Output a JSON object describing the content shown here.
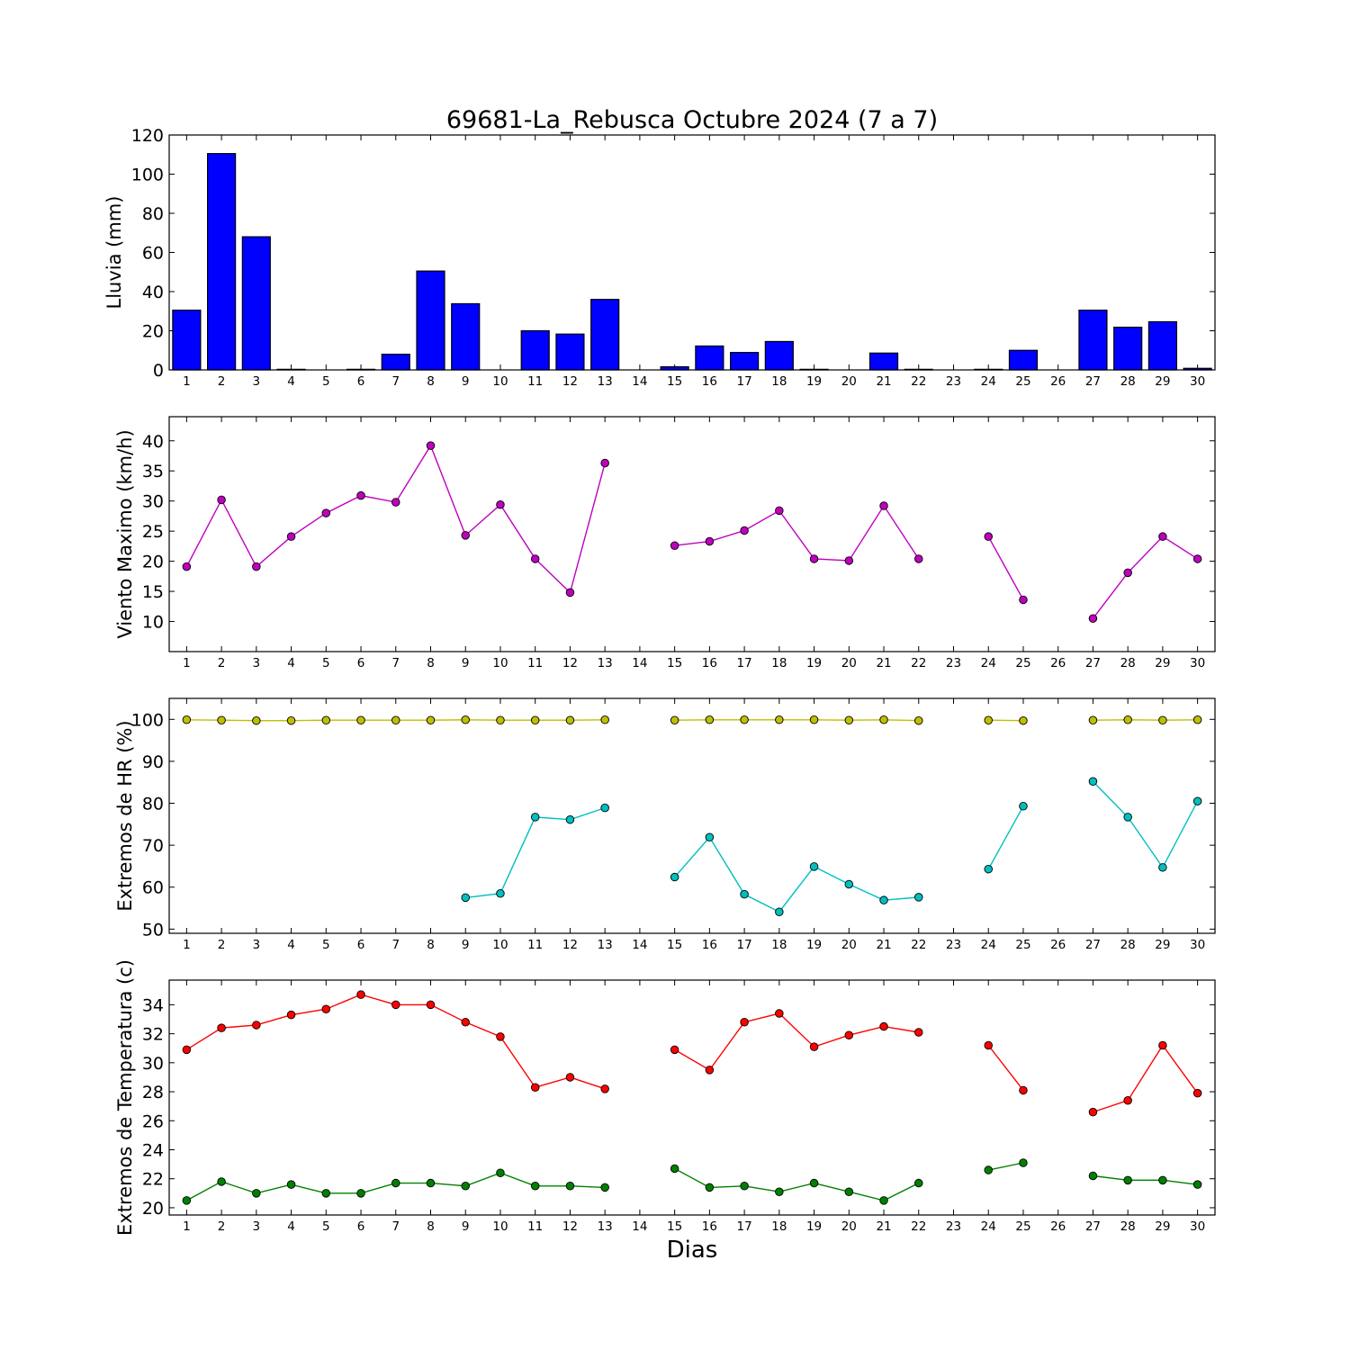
{
  "figure": {
    "title": "69681-La_Rebusca Octubre 2024  (7 a 7)",
    "xlabel": "Dias"
  },
  "chart_data": [
    {
      "type": "bar",
      "ylabel": "Lluvia (mm)",
      "ylim": [
        0,
        120
      ],
      "yticks": [
        0,
        20,
        40,
        60,
        80,
        100,
        120
      ],
      "categories": [
        1,
        2,
        3,
        4,
        5,
        6,
        7,
        8,
        9,
        10,
        11,
        12,
        13,
        14,
        15,
        16,
        17,
        18,
        19,
        20,
        21,
        22,
        23,
        24,
        25,
        26,
        27,
        28,
        29,
        30
      ],
      "series": [
        {
          "color": "#0000ff",
          "values": [
            30.5,
            110.5,
            68,
            0.3,
            0,
            0.3,
            8,
            50.5,
            33.8,
            0,
            20,
            18.3,
            36,
            0,
            1.6,
            12.2,
            8.9,
            14.5,
            0.3,
            0,
            8.6,
            0.3,
            0,
            0.3,
            10,
            0,
            30.5,
            21.8,
            24.6,
            0.8
          ]
        }
      ]
    },
    {
      "type": "line",
      "ylabel": "Viento Maximo (km/h)",
      "ylim": [
        5,
        44
      ],
      "yticks": [
        10,
        15,
        20,
        25,
        30,
        35,
        40
      ],
      "x": [
        1,
        2,
        3,
        4,
        5,
        6,
        7,
        8,
        9,
        10,
        11,
        12,
        13,
        14,
        15,
        16,
        17,
        18,
        19,
        20,
        21,
        22,
        23,
        24,
        25,
        26,
        27,
        28,
        29,
        30
      ],
      "series": [
        {
          "color": "#bf00bf",
          "values": [
            19.1,
            30.2,
            19.1,
            24.1,
            28,
            30.9,
            29.8,
            39.2,
            24.3,
            29.4,
            20.4,
            14.8,
            36.3,
            null,
            22.6,
            23.3,
            25.1,
            28.4,
            20.4,
            20.1,
            29.2,
            20.4,
            null,
            24.1,
            13.6,
            null,
            10.5,
            18.1,
            24.1,
            20.4
          ]
        }
      ]
    },
    {
      "type": "line",
      "ylabel": "Extremos de HR (%)",
      "ylim": [
        49,
        105
      ],
      "yticks": [
        50,
        60,
        70,
        80,
        90,
        100
      ],
      "x": [
        1,
        2,
        3,
        4,
        5,
        6,
        7,
        8,
        9,
        10,
        11,
        12,
        13,
        14,
        15,
        16,
        17,
        18,
        19,
        20,
        21,
        22,
        23,
        24,
        25,
        26,
        27,
        28,
        29,
        30
      ],
      "series": [
        {
          "color": "#bfbf00",
          "values": [
            99.9,
            99.8,
            99.7,
            99.7,
            99.8,
            99.8,
            99.8,
            99.8,
            99.9,
            99.8,
            99.8,
            99.8,
            99.9,
            null,
            99.8,
            99.9,
            99.9,
            99.9,
            99.9,
            99.8,
            99.9,
            99.7,
            null,
            99.8,
            99.7,
            null,
            99.8,
            99.9,
            99.8,
            99.9
          ]
        },
        {
          "color": "#00bfbf",
          "values": [
            null,
            null,
            null,
            null,
            null,
            null,
            null,
            null,
            57.5,
            58.5,
            76.7,
            76.1,
            78.9,
            null,
            62.4,
            71.9,
            58.3,
            54.1,
            64.9,
            60.7,
            56.9,
            57.6,
            null,
            64.3,
            79.3,
            null,
            85.2,
            76.7,
            64.7,
            80.5
          ]
        }
      ]
    },
    {
      "type": "line",
      "ylabel": "Extremos de Temperatura (c)",
      "ylim": [
        19.5,
        35.7
      ],
      "yticks": [
        20,
        22,
        24,
        26,
        28,
        30,
        32,
        34
      ],
      "x": [
        1,
        2,
        3,
        4,
        5,
        6,
        7,
        8,
        9,
        10,
        11,
        12,
        13,
        14,
        15,
        16,
        17,
        18,
        19,
        20,
        21,
        22,
        23,
        24,
        25,
        26,
        27,
        28,
        29,
        30
      ],
      "series": [
        {
          "color": "#ff0000",
          "values": [
            30.9,
            32.4,
            32.6,
            33.3,
            33.7,
            34.7,
            34,
            34,
            32.8,
            31.8,
            28.3,
            29,
            28.2,
            null,
            30.9,
            29.5,
            32.8,
            33.4,
            31.1,
            31.9,
            32.5,
            32.1,
            null,
            31.2,
            28.1,
            null,
            26.6,
            27.4,
            31.2,
            27.9
          ]
        },
        {
          "color": "#008000",
          "values": [
            20.5,
            21.8,
            21,
            21.6,
            21,
            21,
            21.7,
            21.7,
            21.5,
            22.4,
            21.5,
            21.5,
            21.4,
            null,
            22.7,
            21.4,
            21.5,
            21.1,
            21.7,
            21.1,
            20.5,
            21.7,
            null,
            22.6,
            23.1,
            null,
            22.2,
            21.9,
            21.9,
            21.6
          ]
        }
      ]
    }
  ]
}
